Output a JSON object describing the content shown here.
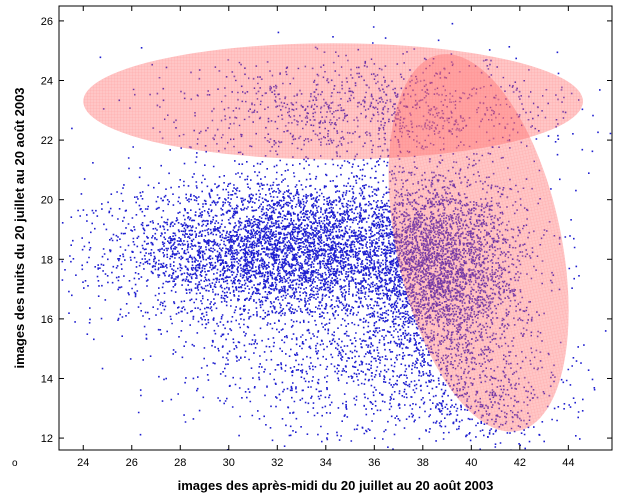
{
  "chart_data": {
    "type": "scatter",
    "title": "",
    "xlabel": "images des après-midi du 20 juillet au 20 août 2003",
    "ylabel": "images des nuits du 20 juillet au 20 août 2003",
    "xlim": [
      23,
      45.8
    ],
    "ylim": [
      11.6,
      26.5
    ],
    "xticks": [
      24,
      26,
      28,
      30,
      32,
      34,
      36,
      38,
      40,
      42,
      44
    ],
    "yticks": [
      12,
      14,
      16,
      18,
      20,
      22,
      24,
      26
    ],
    "grid": false,
    "corner_mark": "o",
    "point_color": "#1f1fd0",
    "point_clusters": [
      {
        "cx": 32.5,
        "cy": 18.3,
        "sx": 3.4,
        "sy": 1.2,
        "count": 5200
      },
      {
        "cx": 38.8,
        "cy": 17.6,
        "sx": 1.7,
        "sy": 1.6,
        "count": 3200
      },
      {
        "cx": 36.0,
        "cy": 23.0,
        "sx": 4.0,
        "sy": 0.9,
        "count": 1100
      },
      {
        "cx": 35.5,
        "cy": 14.3,
        "sx": 3.6,
        "sy": 1.2,
        "count": 900
      },
      {
        "cx": 40.5,
        "cy": 13.2,
        "sx": 1.6,
        "sy": 0.8,
        "count": 350
      }
    ],
    "regions": [
      {
        "name": "upper",
        "cx": 34.3,
        "cy": 23.3,
        "rx": 10.3,
        "ry": 1.95,
        "angle_deg": 0,
        "color": "#ff6b6b",
        "opacity": 0.45
      },
      {
        "name": "right",
        "cx": 40.3,
        "cy": 18.55,
        "rx": 3.4,
        "ry": 6.45,
        "angle_deg": 12,
        "color": "#ff6b6b",
        "opacity": 0.45
      }
    ]
  }
}
